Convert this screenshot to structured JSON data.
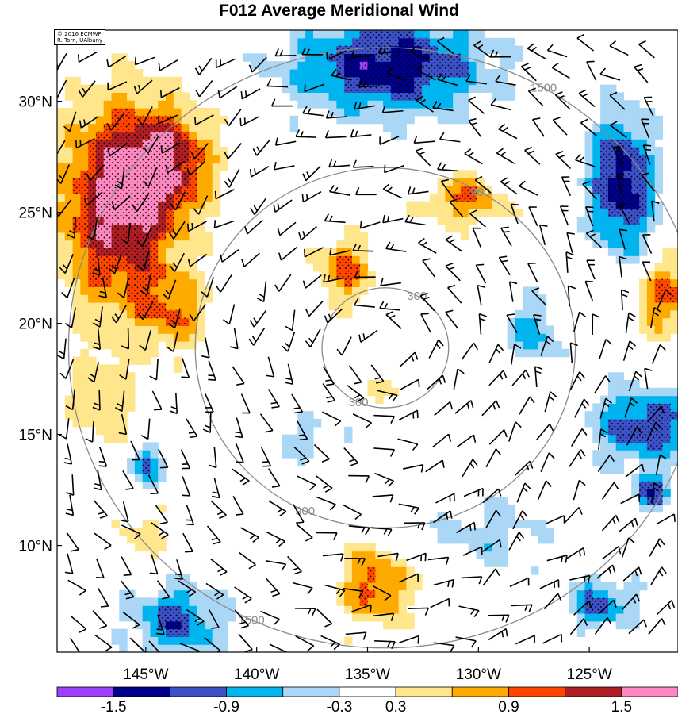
{
  "title": "F012 Average Meridional Wind",
  "credit": {
    "line1": "© 2016 ECMWF",
    "line2": "R. Torn, UAlbany"
  },
  "map": {
    "lon_range": [
      -149,
      -121
    ],
    "lat_range": [
      5.2,
      33.2
    ],
    "lat_ticks": [
      {
        "value": 30,
        "label": "30°N"
      },
      {
        "value": 25,
        "label": "25°N"
      },
      {
        "value": 20,
        "label": "20°N"
      },
      {
        "value": 15,
        "label": "15°N"
      },
      {
        "value": 10,
        "label": "10°N"
      }
    ],
    "lon_ticks": [
      {
        "value": -145,
        "label": "145°W"
      },
      {
        "value": -140,
        "label": "140°W"
      },
      {
        "value": -135,
        "label": "135°W"
      },
      {
        "value": -130,
        "label": "130°W"
      },
      {
        "value": -125,
        "label": "125°W"
      }
    ],
    "storm_center": {
      "lon": -134.2,
      "lat": 18.9
    },
    "range_rings": [
      {
        "km": 300,
        "label": "300"
      },
      {
        "km": 900,
        "label": "900"
      },
      {
        "km": 1500,
        "label": "1500"
      }
    ],
    "ring_color": "#8a8a8a"
  },
  "colorbar": {
    "levels": [
      -1.8,
      -1.5,
      -1.2,
      -0.9,
      -0.6,
      -0.3,
      0.3,
      0.6,
      0.9,
      1.2,
      1.5,
      1.8
    ],
    "colors": [
      "#a040ff",
      "#00008a",
      "#3c50c8",
      "#00b4f0",
      "#aad7f5",
      "#ffffff",
      "#ffe68c",
      "#ffaa00",
      "#ff4500",
      "#b01e23",
      "#ff88c0"
    ],
    "tick_labels": [
      "-1.5",
      "-0.9",
      "-0.3",
      "0.3",
      "0.9",
      "1.5"
    ]
  },
  "anomalies": [
    {
      "lon": -146.2,
      "lat": 25.3,
      "amp": 1.65,
      "sx": 1.9,
      "sy": 3.2
    },
    {
      "lon": -144.0,
      "lat": 27.3,
      "amp": 1.15,
      "sx": 1.4,
      "sy": 1.6
    },
    {
      "lon": -143.8,
      "lat": 20.5,
      "amp": 0.75,
      "sx": 1.1,
      "sy": 1.2
    },
    {
      "lon": -147.0,
      "lat": 16.5,
      "amp": 0.55,
      "sx": 1.0,
      "sy": 1.6
    },
    {
      "lon": -136.1,
      "lat": 22.4,
      "amp": 1.0,
      "sx": 0.9,
      "sy": 1.0
    },
    {
      "lon": -130.6,
      "lat": 25.6,
      "amp": 0.9,
      "sx": 1.3,
      "sy": 0.8
    },
    {
      "lon": -121.5,
      "lat": 21.2,
      "amp": 1.0,
      "sx": 0.9,
      "sy": 1.2
    },
    {
      "lon": -134.6,
      "lat": 8.2,
      "amp": 1.05,
      "sx": 1.1,
      "sy": 1.3
    },
    {
      "lon": -145.2,
      "lat": 10.6,
      "amp": 0.45,
      "sx": 0.8,
      "sy": 1.0
    },
    {
      "lon": -135.0,
      "lat": 16.8,
      "amp": 0.4,
      "sx": 1.0,
      "sy": 0.6
    },
    {
      "lon": -134.0,
      "lat": 31.6,
      "amp": -1.45,
      "sx": 3.0,
      "sy": 1.5
    },
    {
      "lon": -123.5,
      "lat": 26.3,
      "amp": -1.45,
      "sx": 1.0,
      "sy": 2.3
    },
    {
      "lon": -122.5,
      "lat": 15.4,
      "amp": -1.15,
      "sx": 1.7,
      "sy": 1.2
    },
    {
      "lon": -143.6,
      "lat": 6.6,
      "amp": -1.05,
      "sx": 1.5,
      "sy": 1.1
    },
    {
      "lon": -122.2,
      "lat": 12.4,
      "amp": -1.0,
      "sx": 0.6,
      "sy": 0.6
    },
    {
      "lon": -124.5,
      "lat": 7.4,
      "amp": -0.95,
      "sx": 1.1,
      "sy": 0.8
    },
    {
      "lon": -144.8,
      "lat": 13.6,
      "amp": -0.9,
      "sx": 0.6,
      "sy": 0.7
    },
    {
      "lon": -127.5,
      "lat": 19.6,
      "amp": -0.75,
      "sx": 0.9,
      "sy": 1.0
    },
    {
      "lon": -137.8,
      "lat": 14.8,
      "amp": -0.4,
      "sx": 1.3,
      "sy": 0.8
    },
    {
      "lon": -129.5,
      "lat": 10.5,
      "amp": -0.45,
      "sx": 2.0,
      "sy": 1.3
    }
  ]
}
